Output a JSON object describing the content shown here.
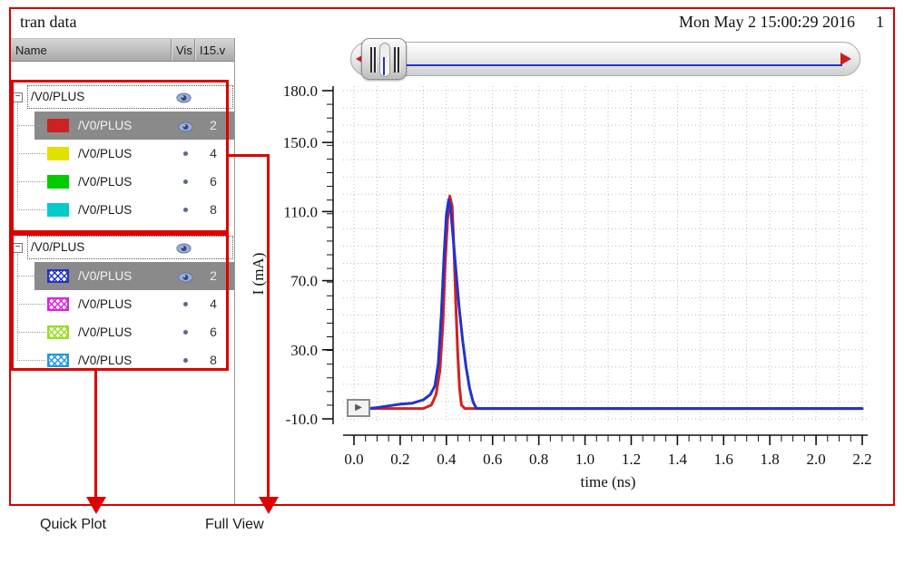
{
  "window": {
    "title": "tran data",
    "timestamp": "Mon May 2 15:00:29 2016",
    "page_number": "1",
    "border_color": "#d40000"
  },
  "sidebar": {
    "columns": [
      "Name",
      "Vis",
      "I15.v"
    ],
    "groups": [
      {
        "name": "/V0/PLUS",
        "vis": "eye",
        "children": [
          {
            "name": "/V0/PLUS",
            "swatch_color": "#cc2222",
            "swatch_style": "solid",
            "vis": "eye",
            "value": "2",
            "selected": true
          },
          {
            "name": "/V0/PLUS",
            "swatch_color": "#e2e200",
            "swatch_style": "solid",
            "vis": "dot",
            "value": "4",
            "selected": false
          },
          {
            "name": "/V0/PLUS",
            "swatch_color": "#00cc00",
            "swatch_style": "solid",
            "vis": "dot",
            "value": "6",
            "selected": false
          },
          {
            "name": "/V0/PLUS",
            "swatch_color": "#00cccc",
            "swatch_style": "solid",
            "vis": "dot",
            "value": "8",
            "selected": false
          }
        ]
      },
      {
        "name": "/V0/PLUS",
        "vis": "eye",
        "children": [
          {
            "name": "/V0/PLUS",
            "swatch_color": "#2233cc",
            "swatch_style": "hatch",
            "vis": "eye",
            "value": "2",
            "selected": true
          },
          {
            "name": "/V0/PLUS",
            "swatch_color": "#dd22dd",
            "swatch_style": "hatch",
            "vis": "dot",
            "value": "4",
            "selected": false
          },
          {
            "name": "/V0/PLUS",
            "swatch_color": "#99dd22",
            "swatch_style": "hatch",
            "vis": "dot",
            "value": "6",
            "selected": false
          },
          {
            "name": "/V0/PLUS",
            "swatch_color": "#2299dd",
            "swatch_style": "hatch",
            "vis": "dot",
            "value": "8",
            "selected": false
          }
        ]
      }
    ]
  },
  "annotations": {
    "quick_plot_label": "Quick Plot",
    "full_view_label": "Full View",
    "color": "#dd0000"
  },
  "icons": {
    "eye": "eye-icon (signal visible)",
    "dot": "hidden-trace-dot",
    "expander": "tree-collapse-minus",
    "slider_arrows": "red left/right triangles",
    "play": "right-pointing triangle"
  },
  "chart_data": {
    "type": "line",
    "title": "",
    "xlabel": "time (ns)",
    "ylabel": "I (mA)",
    "xlim": [
      0,
      2.2
    ],
    "ylim": [
      -10,
      180
    ],
    "x_ticks": [
      0.0,
      0.2,
      0.4,
      0.6,
      0.8,
      1.0,
      1.2,
      1.4,
      1.6,
      1.8,
      2.0,
      2.2
    ],
    "y_ticks": [
      -10,
      30,
      70,
      110,
      150,
      180
    ],
    "grid": "fine dotted grid, 0.1 ns horizontal pitch, 10 mA vertical pitch",
    "legend_position": "none",
    "series": [
      {
        "name": "red trace",
        "color": "#d42020",
        "points": [
          [
            0,
            -4
          ],
          [
            0.3,
            -4
          ],
          [
            0.335,
            -2
          ],
          [
            0.355,
            4
          ],
          [
            0.372,
            18
          ],
          [
            0.385,
            45
          ],
          [
            0.395,
            80
          ],
          [
            0.405,
            105
          ],
          [
            0.415,
            119
          ],
          [
            0.425,
            113
          ],
          [
            0.433,
            88
          ],
          [
            0.441,
            55
          ],
          [
            0.449,
            28
          ],
          [
            0.457,
            8
          ],
          [
            0.465,
            -2
          ],
          [
            0.48,
            -4
          ],
          [
            2.2,
            -4
          ]
        ]
      },
      {
        "name": "blue trace",
        "color": "#2233cc",
        "points": [
          [
            0,
            -4
          ],
          [
            0.06,
            -4
          ],
          [
            0.1,
            -3.5
          ],
          [
            0.15,
            -2.5
          ],
          [
            0.2,
            -1.5
          ],
          [
            0.25,
            -1
          ],
          [
            0.3,
            1
          ],
          [
            0.33,
            4
          ],
          [
            0.35,
            9
          ],
          [
            0.365,
            22
          ],
          [
            0.378,
            50
          ],
          [
            0.39,
            85
          ],
          [
            0.4,
            108
          ],
          [
            0.41,
            117
          ],
          [
            0.418,
            112
          ],
          [
            0.428,
            97
          ],
          [
            0.44,
            78
          ],
          [
            0.455,
            55
          ],
          [
            0.47,
            36
          ],
          [
            0.485,
            20
          ],
          [
            0.5,
            8
          ],
          [
            0.515,
            0
          ],
          [
            0.53,
            -4
          ],
          [
            2.2,
            -4
          ]
        ]
      }
    ]
  }
}
